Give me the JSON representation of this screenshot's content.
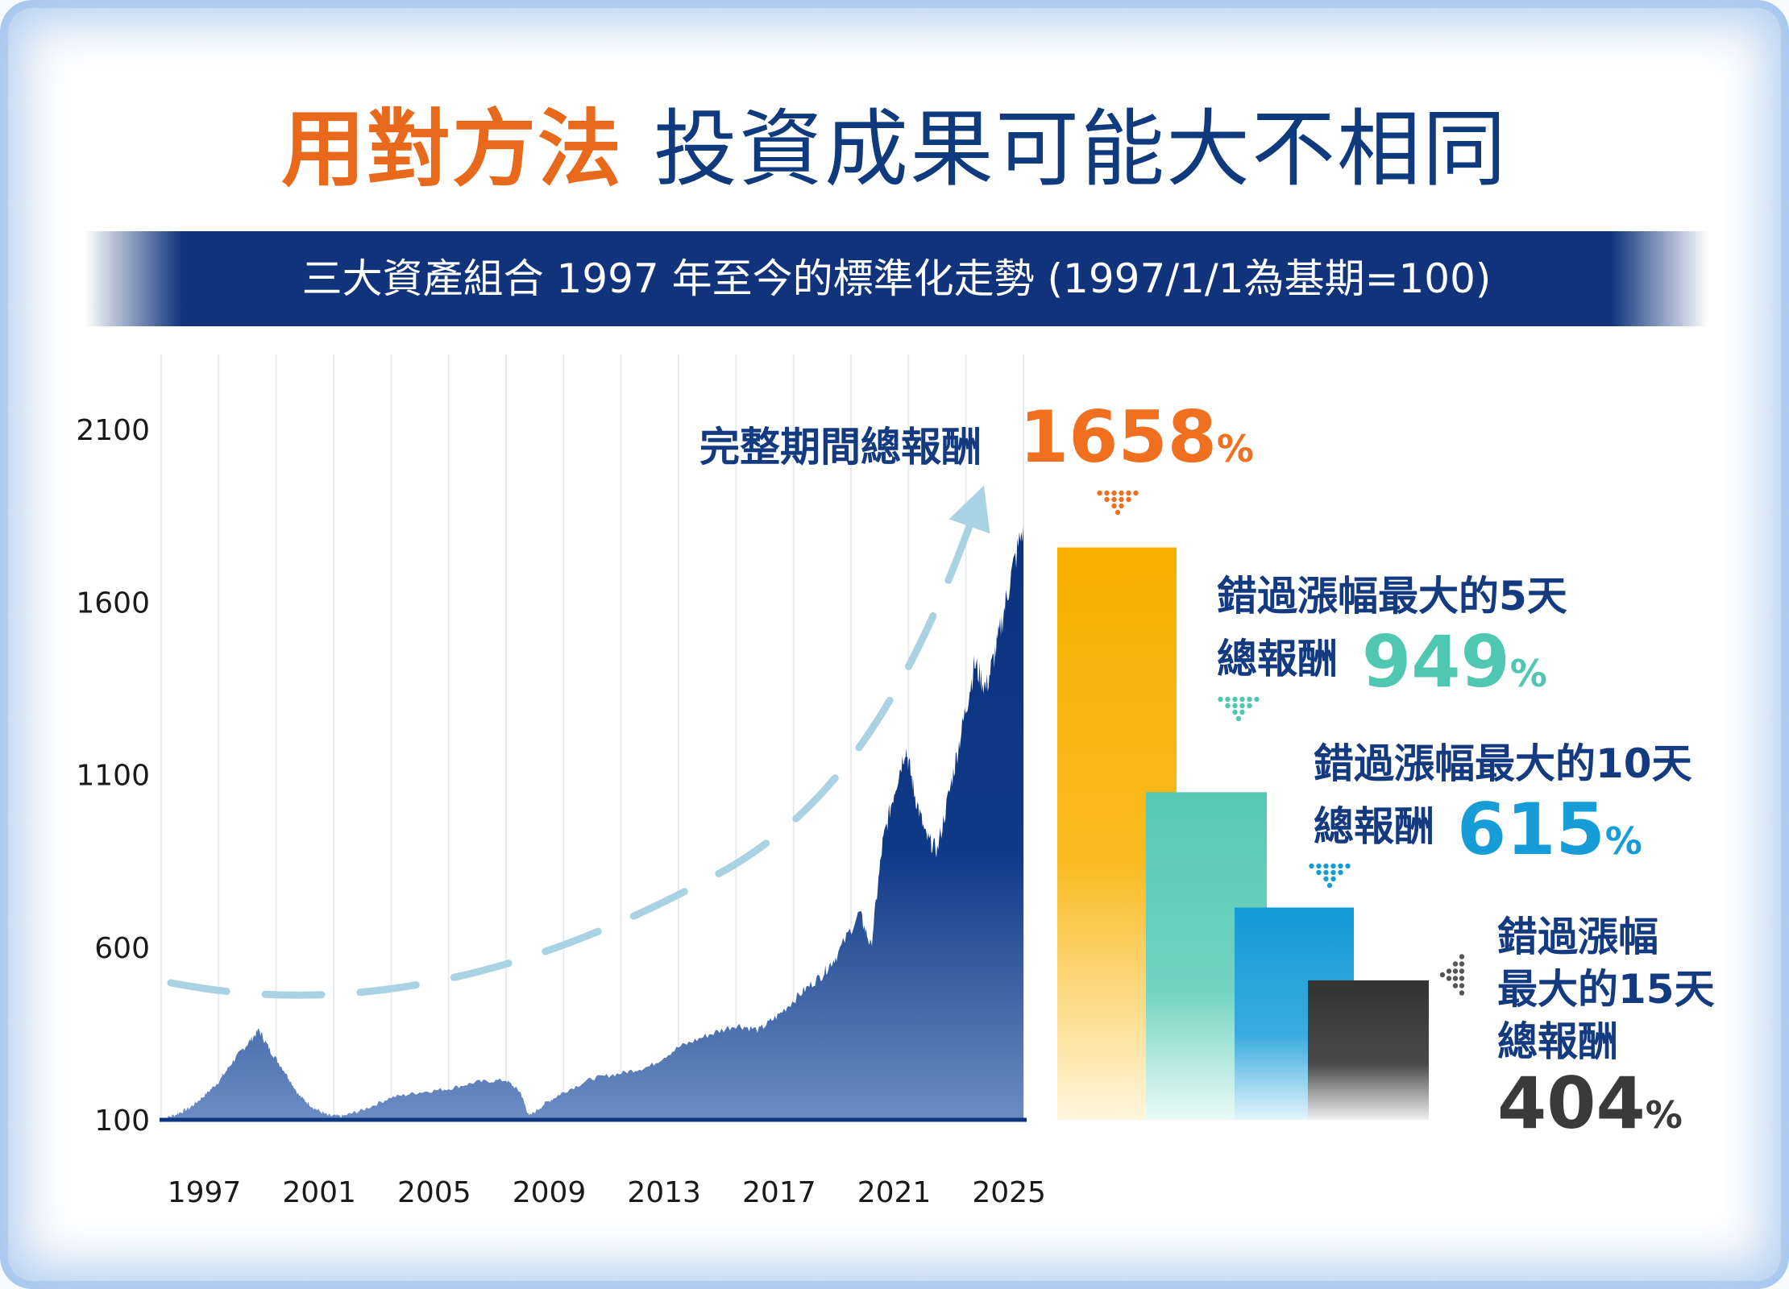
{
  "title": {
    "part1": "用對方法",
    "part2": "投資成果可能大不相同"
  },
  "banner": {
    "text": "三大資產組合 1997 年至今的標準化走勢 (1997/1/1為基期=100)"
  },
  "colors": {
    "orange": "#f07020",
    "gold": "#f9b200",
    "teal": "#4fc7b1",
    "sky": "#169cd6",
    "dark": "#3a3a3a",
    "navy": "#0d3580",
    "arrow": "#a9d3e3"
  },
  "chart_data": {
    "type": "area",
    "title": "三大資產組合 1997 年至今的標準化走勢 (1997/1/1為基期=100)",
    "x_label": "",
    "y_label": "",
    "yticks": [
      "2100",
      "1600",
      "1100",
      "600",
      "100"
    ],
    "ylim": [
      100,
      2100
    ],
    "xticks": [
      "1997",
      "2001",
      "2005",
      "2009",
      "2013",
      "2017",
      "2021",
      "2025"
    ],
    "xlim": [
      1995.5,
      2025.5
    ],
    "series": [
      {
        "name": "標準化走勢",
        "points": [
          [
            1995.5,
            100
          ],
          [
            1996.0,
            115
          ],
          [
            1996.5,
            135
          ],
          [
            1997.0,
            170
          ],
          [
            1997.5,
            210
          ],
          [
            1998.0,
            270
          ],
          [
            1998.5,
            320
          ],
          [
            1998.9,
            360
          ],
          [
            1999.3,
            300
          ],
          [
            1999.8,
            240
          ],
          [
            2000.3,
            170
          ],
          [
            2000.8,
            135
          ],
          [
            2001.3,
            112
          ],
          [
            2001.8,
            110
          ],
          [
            2002.5,
            128
          ],
          [
            2003.5,
            165
          ],
          [
            2004.5,
            180
          ],
          [
            2005.5,
            190
          ],
          [
            2006.5,
            210
          ],
          [
            2007.5,
            215
          ],
          [
            2008.0,
            180
          ],
          [
            2008.3,
            110
          ],
          [
            2008.9,
            150
          ],
          [
            2009.5,
            180
          ],
          [
            2010.5,
            220
          ],
          [
            2011.5,
            235
          ],
          [
            2012.5,
            255
          ],
          [
            2013.5,
            310
          ],
          [
            2014.5,
            345
          ],
          [
            2015.5,
            375
          ],
          [
            2016.3,
            360
          ],
          [
            2017.0,
            405
          ],
          [
            2017.8,
            470
          ],
          [
            2018.5,
            520
          ],
          [
            2019.0,
            575
          ],
          [
            2019.8,
            700
          ],
          [
            2020.2,
            600
          ],
          [
            2020.6,
            900
          ],
          [
            2021.0,
            1050
          ],
          [
            2021.4,
            1180
          ],
          [
            2021.7,
            1050
          ],
          [
            2022.1,
            920
          ],
          [
            2022.5,
            880
          ],
          [
            2023.0,
            1080
          ],
          [
            2023.4,
            1250
          ],
          [
            2023.8,
            1420
          ],
          [
            2024.2,
            1350
          ],
          [
            2024.6,
            1480
          ],
          [
            2025.0,
            1650
          ],
          [
            2025.5,
            1820
          ]
        ]
      }
    ],
    "bars": [
      {
        "name": "完整期間",
        "value": 1658
      },
      {
        "name": "錯過漲幅最大的5天",
        "value": 949
      },
      {
        "name": "錯過漲幅最大的10天",
        "value": 615
      },
      {
        "name": "錯過漲幅最大的15天",
        "value": 404
      }
    ]
  },
  "labels": {
    "full_label": "完整期間總報酬",
    "full_value": "1658",
    "miss5_line1": "錯過漲幅最大的5天",
    "miss5_line2": "總報酬",
    "miss5_value": "949",
    "miss10_line1": "錯過漲幅最大的10天",
    "miss10_line2": "總報酬",
    "miss10_value": "615",
    "miss15_line1": "錯過漲幅",
    "miss15_line2": "最大的15天",
    "miss15_line3": "總報酬",
    "miss15_value": "404",
    "percent": "%"
  }
}
